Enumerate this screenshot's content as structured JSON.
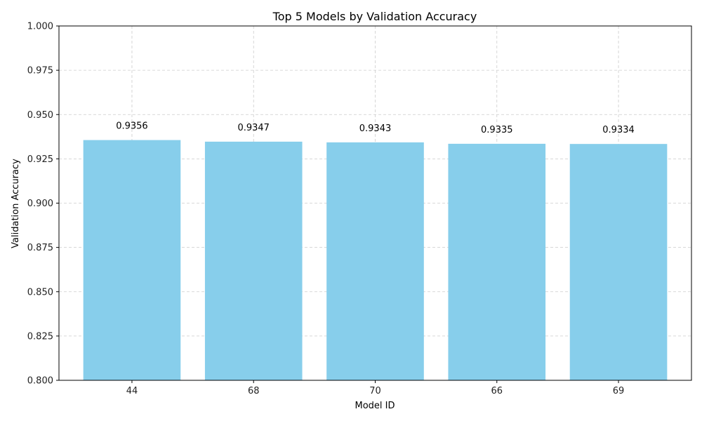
{
  "chart_data": {
    "type": "bar",
    "title": "Top 5 Models by Validation Accuracy",
    "xlabel": "Model ID",
    "ylabel": "Validation Accuracy",
    "categories": [
      "44",
      "68",
      "70",
      "66",
      "69"
    ],
    "values": [
      0.9356,
      0.9347,
      0.9343,
      0.9335,
      0.9334
    ],
    "data_labels": [
      "0.9356",
      "0.9347",
      "0.9343",
      "0.9335",
      "0.9334"
    ],
    "ylim": [
      0.8,
      1.0
    ],
    "yticks": [
      0.8,
      0.825,
      0.85,
      0.875,
      0.9,
      0.925,
      0.95,
      0.975,
      1.0
    ],
    "ytick_labels": [
      "0.800",
      "0.825",
      "0.850",
      "0.875",
      "0.900",
      "0.925",
      "0.950",
      "0.975",
      "1.000"
    ],
    "grid": true,
    "bar_color": "#87ceeb"
  }
}
